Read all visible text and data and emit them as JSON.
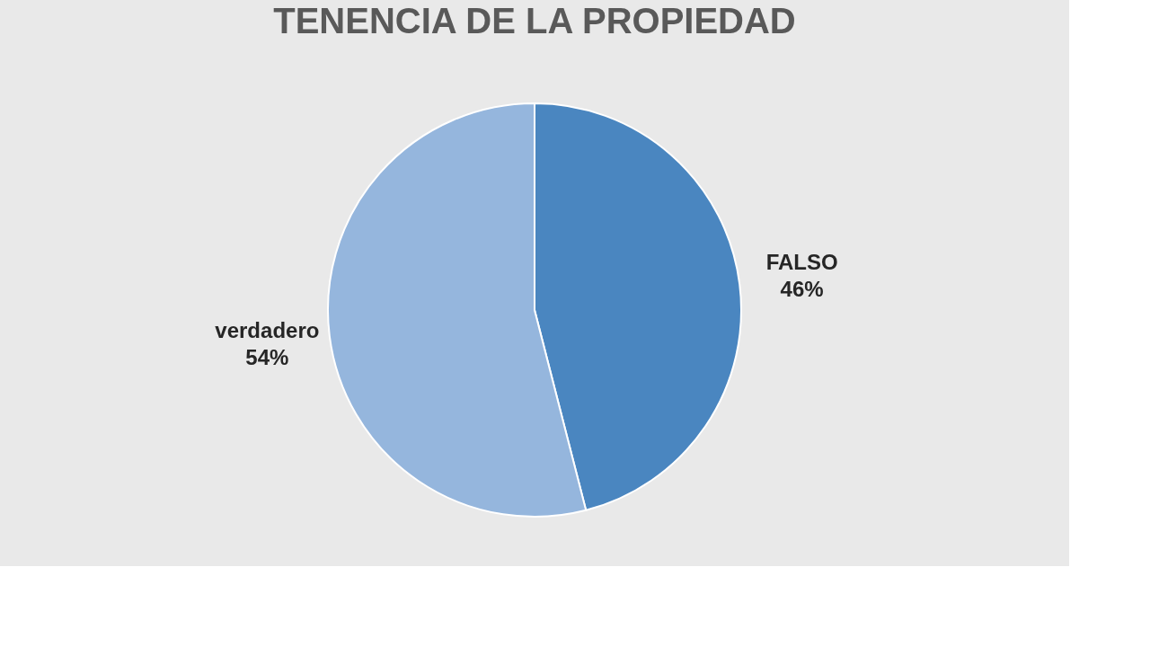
{
  "chart_data": {
    "type": "pie",
    "title": "TENENCIA DE LA PROPIEDAD",
    "categories": [
      "FALSO",
      "verdadero"
    ],
    "values": [
      46,
      54
    ],
    "value_labels": [
      "46%",
      "54%"
    ],
    "colors": [
      "#4a86c0",
      "#95b6dd"
    ],
    "legend": false
  }
}
